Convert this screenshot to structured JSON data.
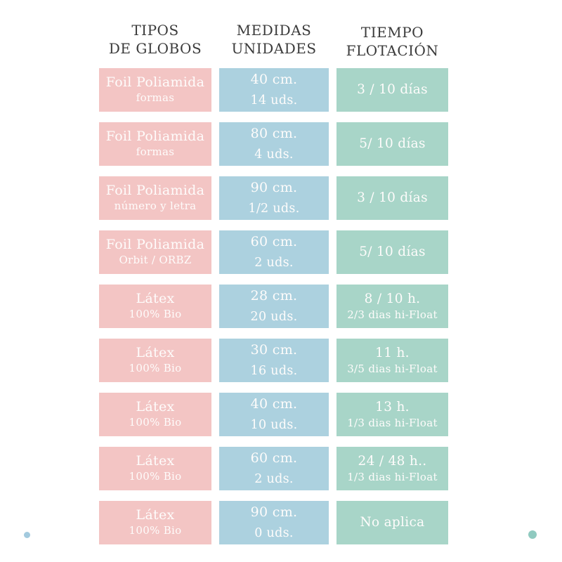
{
  "colors": {
    "pink": "#f3c5c4",
    "blue": "#acd1df",
    "green": "#a8d5c8",
    "header_text": "#3b3b3b",
    "cell_text": "#fefcfb",
    "dot_blue": "#a3cade",
    "dot_teal": "#90cac0"
  },
  "header": {
    "columns": [
      {
        "line1": "TIPOS",
        "line2": "DE GLOBOS"
      },
      {
        "line1": "MEDIDAS",
        "line2": "UNIDADES"
      },
      {
        "line1": "TIEMPO",
        "line2": "FLOTACIÓN"
      }
    ]
  },
  "rows": [
    {
      "tipo": [
        "Foil Poliamida",
        "formas"
      ],
      "medida": [
        "40 cm.",
        "14 uds."
      ],
      "tiempo": [
        "3 / 10 días",
        ""
      ]
    },
    {
      "tipo": [
        "Foil Poliamida",
        "formas"
      ],
      "medida": [
        "80 cm.",
        "4 uds."
      ],
      "tiempo": [
        "5/ 10 días",
        ""
      ]
    },
    {
      "tipo": [
        "Foil Poliamida",
        "número y letra"
      ],
      "medida": [
        "90 cm.",
        "1/2 uds."
      ],
      "tiempo": [
        "3 / 10 días",
        ""
      ]
    },
    {
      "tipo": [
        "Foil Poliamida",
        "Orbit / ORBZ"
      ],
      "medida": [
        "60 cm.",
        "2 uds."
      ],
      "tiempo": [
        "5/ 10 días",
        ""
      ]
    },
    {
      "tipo": [
        "Látex",
        "100% Bio"
      ],
      "medida": [
        "28 cm.",
        "20 uds."
      ],
      "tiempo": [
        "8 / 10 h.",
        "2/3 dias hi-Float"
      ]
    },
    {
      "tipo": [
        "Látex",
        "100% Bio"
      ],
      "medida": [
        "30 cm.",
        "16 uds."
      ],
      "tiempo": [
        "11 h.",
        "3/5 dias hi-Float"
      ]
    },
    {
      "tipo": [
        "Látex",
        "100% Bio"
      ],
      "medida": [
        "40 cm.",
        "10 uds."
      ],
      "tiempo": [
        "13 h.",
        "1/3 dias hi-Float"
      ]
    },
    {
      "tipo": [
        "Látex",
        "100% Bio"
      ],
      "medida": [
        "60 cm.",
        "2 uds."
      ],
      "tiempo": [
        "24 / 48 h..",
        "1/3 dias hi-Float"
      ]
    },
    {
      "tipo": [
        "Látex",
        "100% Bio"
      ],
      "medida": [
        "90 cm.",
        "0 uds."
      ],
      "tiempo": [
        "No aplica",
        ""
      ]
    }
  ],
  "chart_data": {
    "type": "table",
    "title": "Tipos de globos, medidas y tiempo de flotación",
    "columns": [
      "TIPOS DE GLOBOS",
      "MEDIDAS UNIDADES",
      "TIEMPO FLOTACIÓN"
    ],
    "rows": [
      [
        "Foil Poliamida formas",
        "40 cm. 14 uds.",
        "3 / 10 días"
      ],
      [
        "Foil Poliamida formas",
        "80 cm. 4 uds.",
        "5/ 10 días"
      ],
      [
        "Foil Poliamida número y letra",
        "90 cm. 1/2 uds.",
        "3 / 10 días"
      ],
      [
        "Foil Poliamida Orbit / ORBZ",
        "60 cm. 2 uds.",
        "5/ 10 días"
      ],
      [
        "Látex 100% Bio",
        "28 cm. 20 uds.",
        "8 / 10 h. 2/3 dias hi-Float"
      ],
      [
        "Látex 100% Bio",
        "30 cm. 16 uds.",
        "11 h. 3/5 dias hi-Float"
      ],
      [
        "Látex 100% Bio",
        "40 cm. 10 uds.",
        "13 h. 1/3 dias hi-Float"
      ],
      [
        "Látex 100% Bio",
        "60 cm. 2 uds.",
        "24 / 48 h.. 1/3 dias hi-Float"
      ],
      [
        "Látex 100% Bio",
        "90 cm. 0 uds.",
        "No aplica"
      ]
    ]
  }
}
